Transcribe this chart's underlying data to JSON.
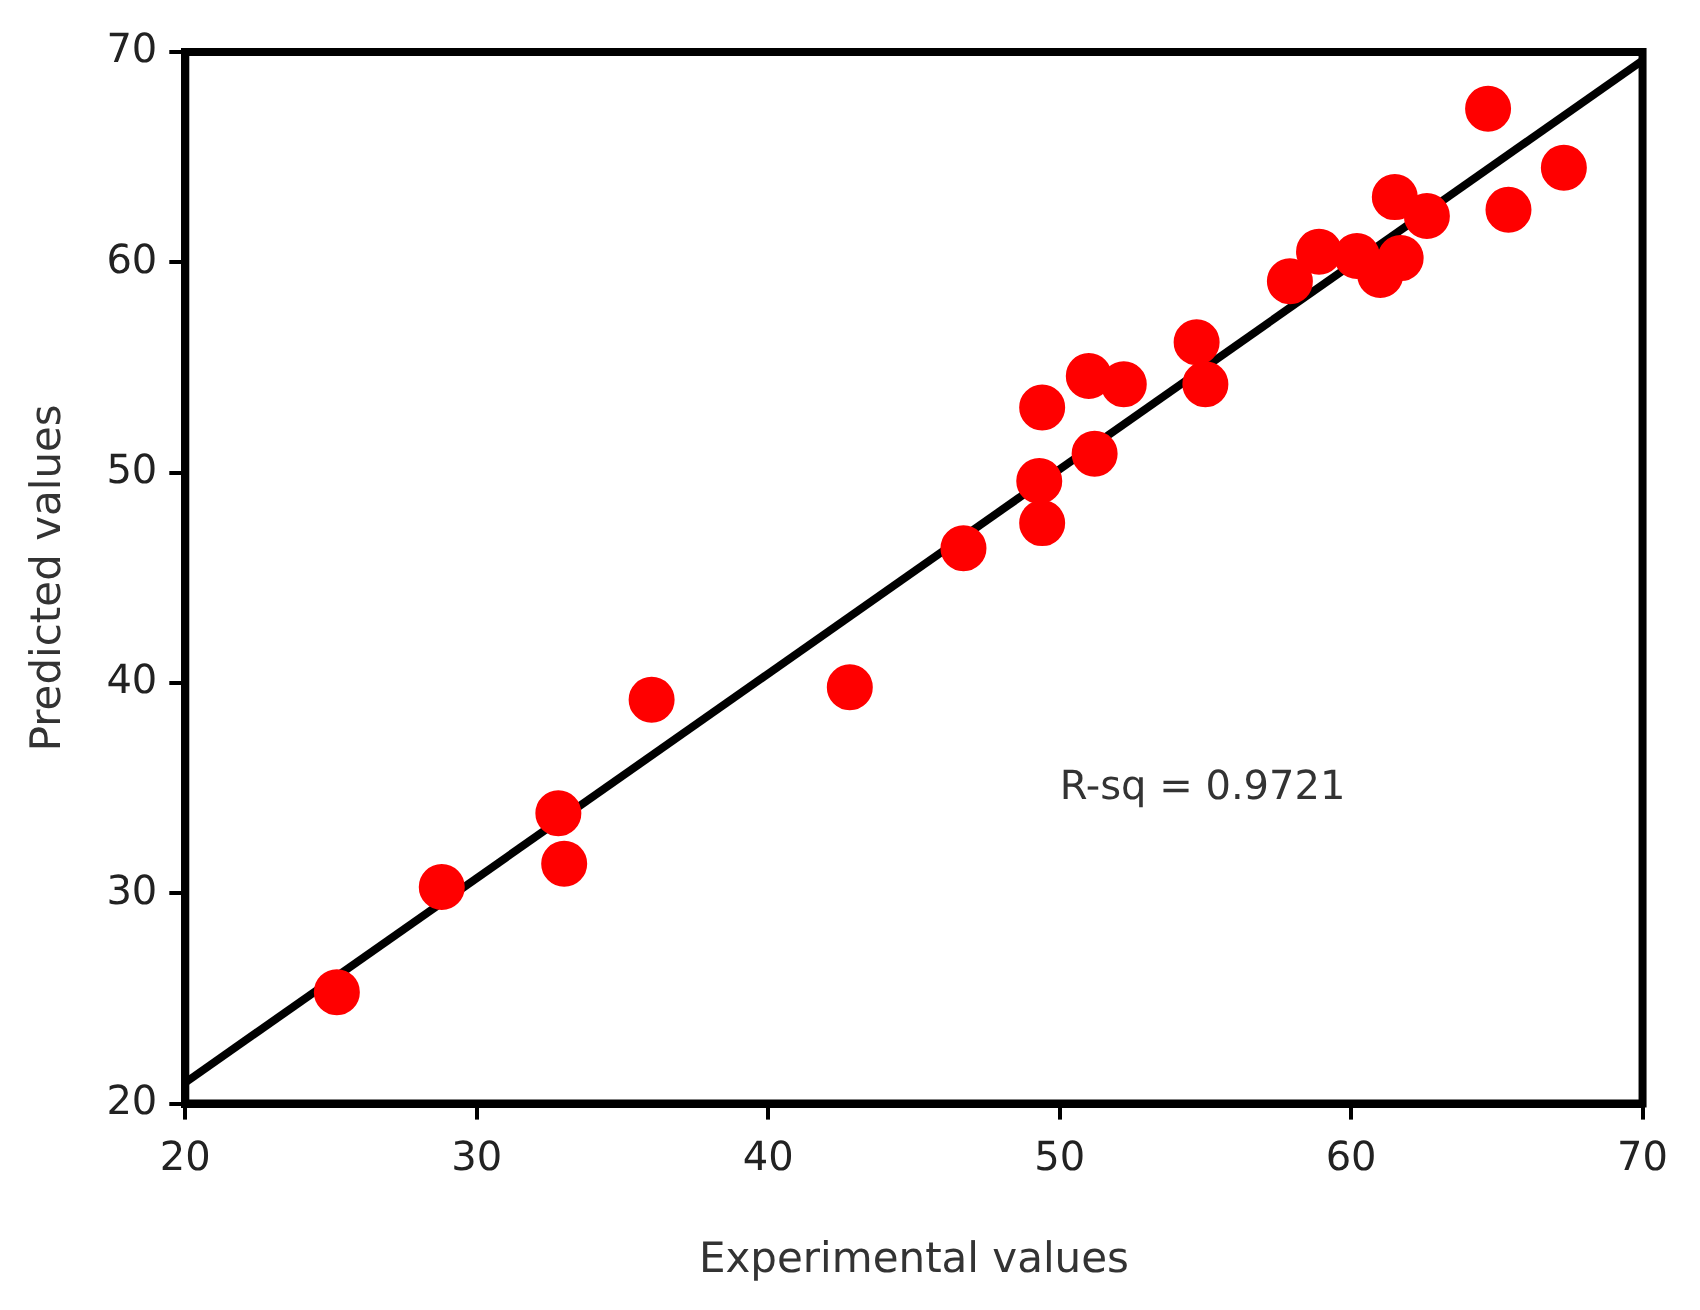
{
  "chart_data": {
    "type": "scatter",
    "xlabel": "Experimental values",
    "ylabel": "Predicted values",
    "annotations": [
      "R-sq = 0.9721"
    ],
    "xlim": [
      20,
      70
    ],
    "ylim": [
      20,
      70
    ],
    "xticks": [
      20,
      30,
      40,
      50,
      60,
      70
    ],
    "yticks": [
      20,
      30,
      40,
      50,
      60,
      70
    ],
    "grid": false,
    "legend": false,
    "marker": "circle",
    "series": [
      {
        "type": "scatter",
        "color": "#ff0000",
        "x": [
          25.2,
          28.8,
          32.8,
          33.0,
          36.0,
          42.8,
          46.7,
          49.4,
          49.3,
          51.2,
          49.4,
          51.0,
          52.2,
          55.0,
          54.7,
          57.9,
          58.9,
          60.2,
          61.0,
          61.7,
          61.5,
          62.6,
          65.4,
          64.7,
          67.3
        ],
        "values": [
          25.3,
          30.3,
          33.8,
          31.4,
          39.2,
          39.8,
          46.4,
          47.6,
          49.6,
          50.9,
          53.1,
          54.6,
          54.2,
          54.2,
          56.2,
          59.1,
          60.5,
          60.3,
          59.4,
          60.2,
          63.1,
          62.2,
          62.5,
          67.3,
          64.5
        ]
      },
      {
        "type": "line",
        "color": "#000000",
        "marker": "none",
        "x": [
          20,
          70
        ],
        "values": [
          21,
          69.6
        ]
      }
    ]
  }
}
